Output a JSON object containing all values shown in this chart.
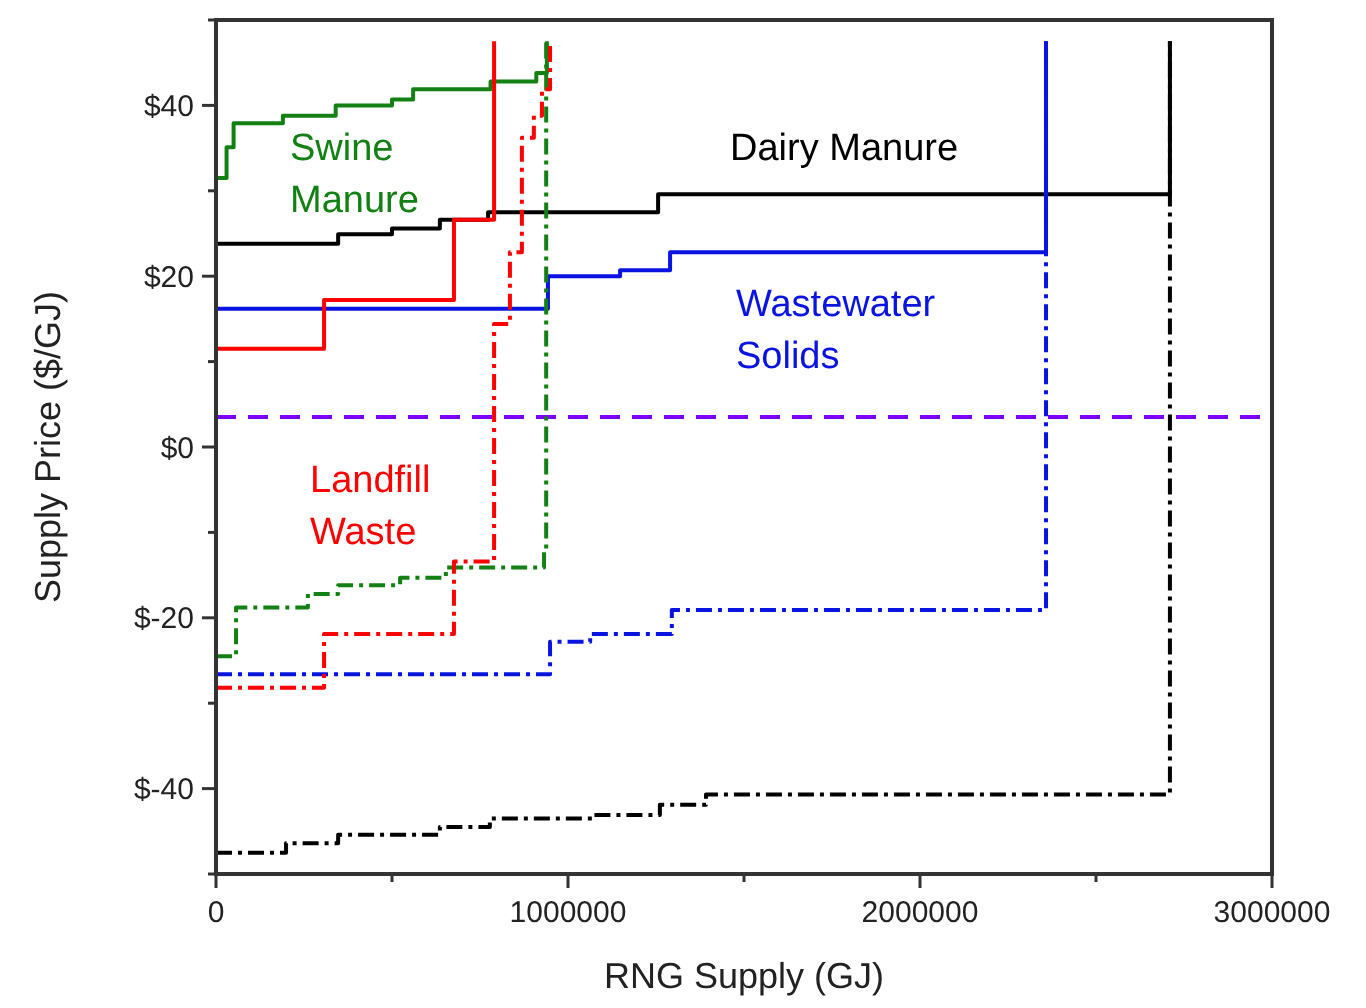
{
  "chart_data": {
    "type": "step",
    "xlabel": "RNG Supply (GJ)",
    "ylabel": "Supply Price ($/GJ)",
    "xlim": [
      0,
      3000000
    ],
    "ylim": [
      -50,
      50
    ],
    "xticks": [
      0,
      {
        "value": 500000,
        "label": null
      },
      1000000,
      {
        "value": 1500000,
        "label": null
      },
      2000000,
      {
        "value": 2500000,
        "label": null
      },
      3000000
    ],
    "yticks": [
      {
        "value": -50,
        "label": null
      },
      {
        "value": -40,
        "label": "$-40"
      },
      {
        "value": -30,
        "label": null
      },
      {
        "value": -20,
        "label": "$-20"
      },
      {
        "value": -10,
        "label": null
      },
      {
        "value": 0,
        "label": "$0"
      },
      {
        "value": 10,
        "label": null
      },
      {
        "value": 20,
        "label": "$20"
      },
      {
        "value": 30,
        "label": null
      },
      {
        "value": 40,
        "label": "$40"
      },
      {
        "value": 50,
        "label": null
      }
    ],
    "grid": false,
    "marker": "none",
    "series": [
      {
        "name": "Swine Manure",
        "color": "#138013",
        "line_style": "solid",
        "x": [
          0,
          30000,
          50000,
          190000,
          340000,
          500000,
          560000,
          780000,
          910000,
          940000
        ],
        "values": [
          31.5,
          35.1,
          37.9,
          38.8,
          40.0,
          40.7,
          41.9,
          42.8,
          43.8,
          47.5
        ]
      },
      {
        "name": "Dairy Manure",
        "color": "#000000",
        "line_style": "solid",
        "x": [
          0,
          347000,
          500000,
          636000,
          773000,
          1256000,
          2710000
        ],
        "values": [
          23.8,
          24.9,
          25.6,
          26.6,
          27.5,
          29.6,
          47.5
        ]
      },
      {
        "name": "Wastewater Solids",
        "color": "#0a14e0",
        "line_style": "solid",
        "x": [
          0,
          943000,
          1148000,
          1290000,
          2358000
        ],
        "values": [
          16.2,
          20.0,
          20.7,
          22.8,
          47.5
        ]
      },
      {
        "name": "Landfill Waste",
        "color": "#ff0000",
        "line_style": "solid",
        "x": [
          0,
          307000,
          676000,
          790000
        ],
        "values": [
          11.5,
          17.2,
          26.6,
          47.5
        ]
      },
      {
        "color": "#138013",
        "line_style": "dashdot",
        "x": [
          0,
          57000,
          261000,
          347000,
          523000,
          653000,
          932000,
          938000
        ],
        "values": [
          -24.5,
          -18.8,
          -17.2,
          -16.2,
          -15.3,
          -14.1,
          -12.2,
          47.5
        ]
      },
      {
        "color": "#000000",
        "line_style": "dashdot",
        "x": [
          0,
          199000,
          347000,
          636000,
          778000,
          1074000,
          1261000,
          1392000,
          2710000
        ],
        "values": [
          -47.5,
          -46.4,
          -45.4,
          -44.5,
          -43.5,
          -43.1,
          -41.9,
          -40.7,
          47.5
        ]
      },
      {
        "color": "#0a14e0",
        "line_style": "dashdot",
        "x": [
          0,
          949000,
          1063000,
          1295000,
          2358000
        ],
        "values": [
          -26.6,
          -22.8,
          -21.9,
          -19.1,
          47.5
        ]
      },
      {
        "color": "#ff0000",
        "line_style": "dashdot",
        "x": [
          0,
          307000,
          676000,
          790000,
          835000,
          869000,
          903000,
          926000,
          949000
        ],
        "values": [
          -28.2,
          -21.9,
          -13.4,
          14.4,
          22.8,
          36.2,
          38.8,
          41.9,
          47.5
        ]
      }
    ],
    "ref_lines": [
      {
        "axis": "y",
        "value": 3.5,
        "color": "#7f00ff",
        "line_style": "dashed"
      }
    ]
  }
}
